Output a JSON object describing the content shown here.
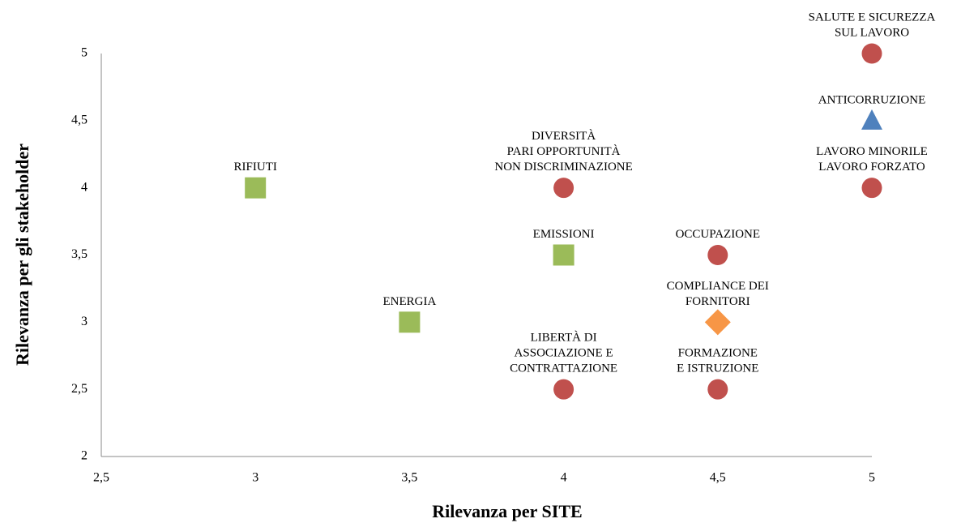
{
  "chart_data": {
    "type": "scatter",
    "xlabel": "Rilevanza per SITE",
    "ylabel": "Rilevanza per gli stakeholder",
    "xlim": [
      2.5,
      5
    ],
    "ylim": [
      2,
      5
    ],
    "xticks": [
      {
        "value": 2.5,
        "label": "2,5"
      },
      3,
      {
        "value": 3.5,
        "label": "3,5"
      },
      4,
      {
        "value": 4.5,
        "label": "4,5"
      },
      5
    ],
    "yticks": [
      2,
      {
        "value": 2.5,
        "label": "2,5"
      },
      3,
      {
        "value": 3.5,
        "label": "3,5"
      },
      4,
      {
        "value": 4.5,
        "label": "4,5"
      },
      5
    ],
    "points": [
      {
        "label": [
          "RIFIUTI"
        ],
        "x": 3,
        "y": 4,
        "marker": "square",
        "color": "#9bbb59"
      },
      {
        "label": [
          "ENERGIA"
        ],
        "x": 3.5,
        "y": 3,
        "marker": "square",
        "color": "#9bbb59"
      },
      {
        "label": [
          "EMISSIONI"
        ],
        "x": 4,
        "y": 3.5,
        "marker": "square",
        "color": "#9bbb59"
      },
      {
        "label": [
          "DIVERSITÀ",
          "PARI OPPORTUNITÀ",
          "NON DISCRIMINAZIONE"
        ],
        "x": 4,
        "y": 4,
        "marker": "circle",
        "color": "#c0504d"
      },
      {
        "label": [
          "LIBERTÀ DI",
          "ASSOCIAZIONE E",
          "CONTRATTAZIONE"
        ],
        "x": 4,
        "y": 2.5,
        "marker": "circle",
        "color": "#c0504d"
      },
      {
        "label": [
          "OCCUPAZIONE"
        ],
        "x": 4.5,
        "y": 3.5,
        "marker": "circle",
        "color": "#c0504d"
      },
      {
        "label": [
          "COMPLIANCE DEI",
          "FORNITORI"
        ],
        "x": 4.5,
        "y": 3,
        "marker": "diamond",
        "color": "#f79646"
      },
      {
        "label": [
          "FORMAZIONE",
          "E ISTRUZIONE"
        ],
        "x": 4.5,
        "y": 2.5,
        "marker": "circle",
        "color": "#c0504d"
      },
      {
        "label": [
          "SALUTE E SICUREZZA",
          "SUL LAVORO"
        ],
        "x": 5,
        "y": 5,
        "marker": "circle",
        "color": "#c0504d"
      },
      {
        "label": [
          "ANTICORRUZIONE"
        ],
        "x": 5,
        "y": 4.5,
        "marker": "triangle",
        "color": "#4f81bd"
      },
      {
        "label": [
          "LAVORO MINORILE",
          "LAVORO FORZATO"
        ],
        "x": 5,
        "y": 4,
        "marker": "circle",
        "color": "#c0504d"
      }
    ]
  }
}
